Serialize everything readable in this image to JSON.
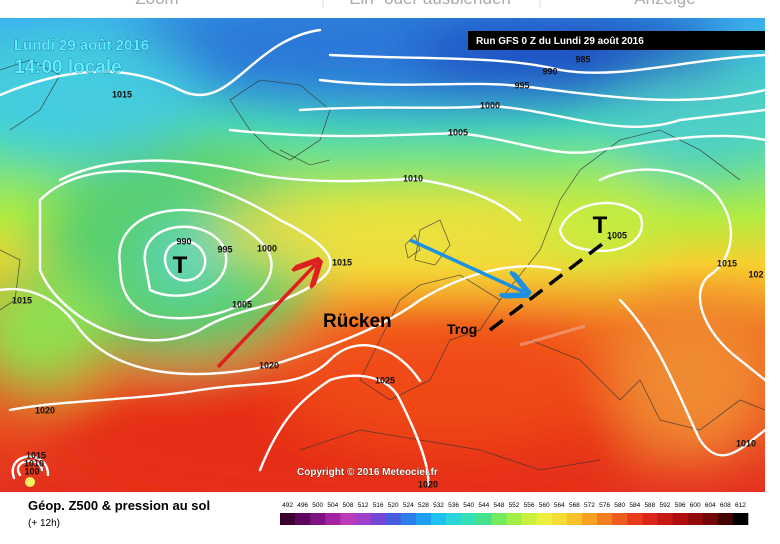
{
  "toolbar": {
    "items": [
      "Zoom",
      "Ein- oder ausblenden",
      "Anzeige"
    ]
  },
  "map": {
    "date": "Lundi 29 août 2016",
    "time": "14:00 locale",
    "run": "Run GFS 0 Z du Lundi 29 août 2016",
    "isobar_labels": [
      "1015",
      "985",
      "990",
      "995",
      "1000",
      "1005",
      "1010",
      "990",
      "995",
      "1000",
      "1015",
      "1005",
      "1015",
      "1020",
      "1025",
      "1020",
      "1020",
      "1005",
      "1015",
      "102",
      "1010",
      "1015",
      "1010",
      "100"
    ],
    "low_markers": [
      "T",
      "T"
    ],
    "annotations": [
      "Rücken",
      "Trog"
    ],
    "copyright": "Copyright © 2016 Meteociel.fr"
  },
  "legend": {
    "title": "Géop. Z500 & pression au sol",
    "subtitle": "(+ 12h)",
    "scale": [
      "492",
      "496",
      "500",
      "504",
      "508",
      "512",
      "516",
      "520",
      "524",
      "528",
      "532",
      "536",
      "540",
      "544",
      "548",
      "552",
      "556",
      "560",
      "564",
      "568",
      "572",
      "576",
      "580",
      "584",
      "588",
      "592",
      "596",
      "600",
      "604",
      "608",
      "612"
    ]
  }
}
